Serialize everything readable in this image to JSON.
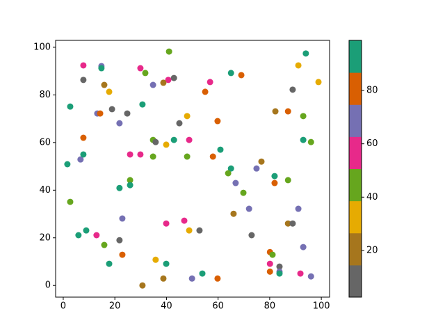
{
  "chart_data": {
    "type": "scatter",
    "x": [
      41,
      94,
      7.8,
      14.8,
      14.8,
      29.9,
      31.8,
      65,
      69,
      42.9,
      40.7,
      38.8,
      7.8,
      56.9,
      91.1,
      98.9,
      15.9,
      34.8,
      17.8,
      55,
      88.9,
      30.7,
      2.7,
      13.2,
      14.3,
      18.9,
      24.8,
      82.2,
      87.1,
      93,
      48,
      59.8,
      21.8,
      45,
      7.8,
      34.8,
      35.8,
      42.9,
      48.8,
      93,
      96,
      39.9,
      1.6,
      6.7,
      7.8,
      25.9,
      29.9,
      34.8,
      48,
      58,
      60.9,
      76.8,
      74.9,
      65,
      63.9,
      66.8,
      81.9,
      81.9,
      87.1,
      25.9,
      25.9,
      21.8,
      69.8,
      2.7,
      66,
      72,
      91.1,
      22.9,
      39.9,
      46.9,
      87.1,
      88.9,
      8.9,
      48.8,
      52.8,
      5.9,
      12.9,
      21.8,
      73,
      15.9,
      93,
      22.9,
      35.8,
      17.8,
      39.9,
      80.1,
      81.1,
      80.1,
      83.8,
      80.1,
      83.8,
      83.8,
      91.9,
      96,
      53.9,
      38.8,
      49.9,
      59.8,
      30.7
    ],
    "y": [
      98.2,
      97.4,
      92.4,
      92.1,
      91.2,
      91.2,
      89.2,
      89.2,
      88.3,
      87.1,
      86.3,
      85.1,
      86.3,
      85.4,
      92.4,
      85.4,
      84.2,
      84.2,
      81.3,
      81.3,
      82.2,
      76,
      75.1,
      72.2,
      72.2,
      74,
      72.2,
      73.1,
      73.1,
      71.1,
      71.1,
      69,
      68.1,
      68.1,
      62,
      61.1,
      60.2,
      61.1,
      61.1,
      61.1,
      60.2,
      59.1,
      50.9,
      52.9,
      55,
      55,
      55,
      54.1,
      54.1,
      54.1,
      57,
      52,
      49.1,
      49.1,
      47.1,
      43,
      45.9,
      43,
      44.2,
      44.2,
      42.1,
      40.9,
      38.9,
      35.1,
      30.1,
      32.2,
      32.2,
      28.1,
      26,
      27.2,
      26,
      26,
      23.1,
      23.1,
      23.1,
      21.1,
      21.1,
      19,
      21.1,
      17,
      16.1,
      12.9,
      10.8,
      9.1,
      9.1,
      14,
      12.9,
      9.1,
      7.9,
      5.8,
      5.8,
      5,
      5,
      3.8,
      5,
      2.9,
      2.9,
      2.9,
      0
    ],
    "c": [
      44,
      92,
      56,
      68,
      92,
      56,
      44,
      92,
      80,
      8,
      56,
      20,
      8,
      56,
      32,
      32,
      20,
      68,
      32,
      80,
      8,
      92,
      92,
      68,
      80,
      8,
      8,
      20,
      80,
      44,
      32,
      80,
      68,
      8,
      80,
      44,
      8,
      92,
      56,
      92,
      44,
      32,
      92,
      68,
      92,
      56,
      56,
      44,
      44,
      80,
      92,
      20,
      68,
      92,
      44,
      68,
      92,
      80,
      44,
      44,
      92,
      92,
      44,
      44,
      20,
      68,
      68,
      68,
      56,
      56,
      20,
      8,
      92,
      32,
      8,
      92,
      56,
      8,
      8,
      44,
      68,
      80,
      32,
      92,
      92,
      80,
      44,
      56,
      8,
      80,
      68,
      92,
      56,
      68,
      92,
      20,
      68,
      80,
      20
    ],
    "colormap": [
      "#666666",
      "#a6761d",
      "#e6ab02",
      "#66a61e",
      "#e7298a",
      "#7570b3",
      "#d95f02",
      "#1b9e77"
    ],
    "xlim": [
      -2.95,
      103.2
    ],
    "ylim": [
      -4.9,
      102.9
    ],
    "xticks": [
      0,
      20,
      40,
      60,
      80,
      100
    ],
    "yticks": [
      0,
      20,
      40,
      60,
      80,
      100
    ],
    "clim": [
      2.5,
      98.8
    ],
    "cticks": [
      20,
      40,
      60,
      80
    ]
  }
}
